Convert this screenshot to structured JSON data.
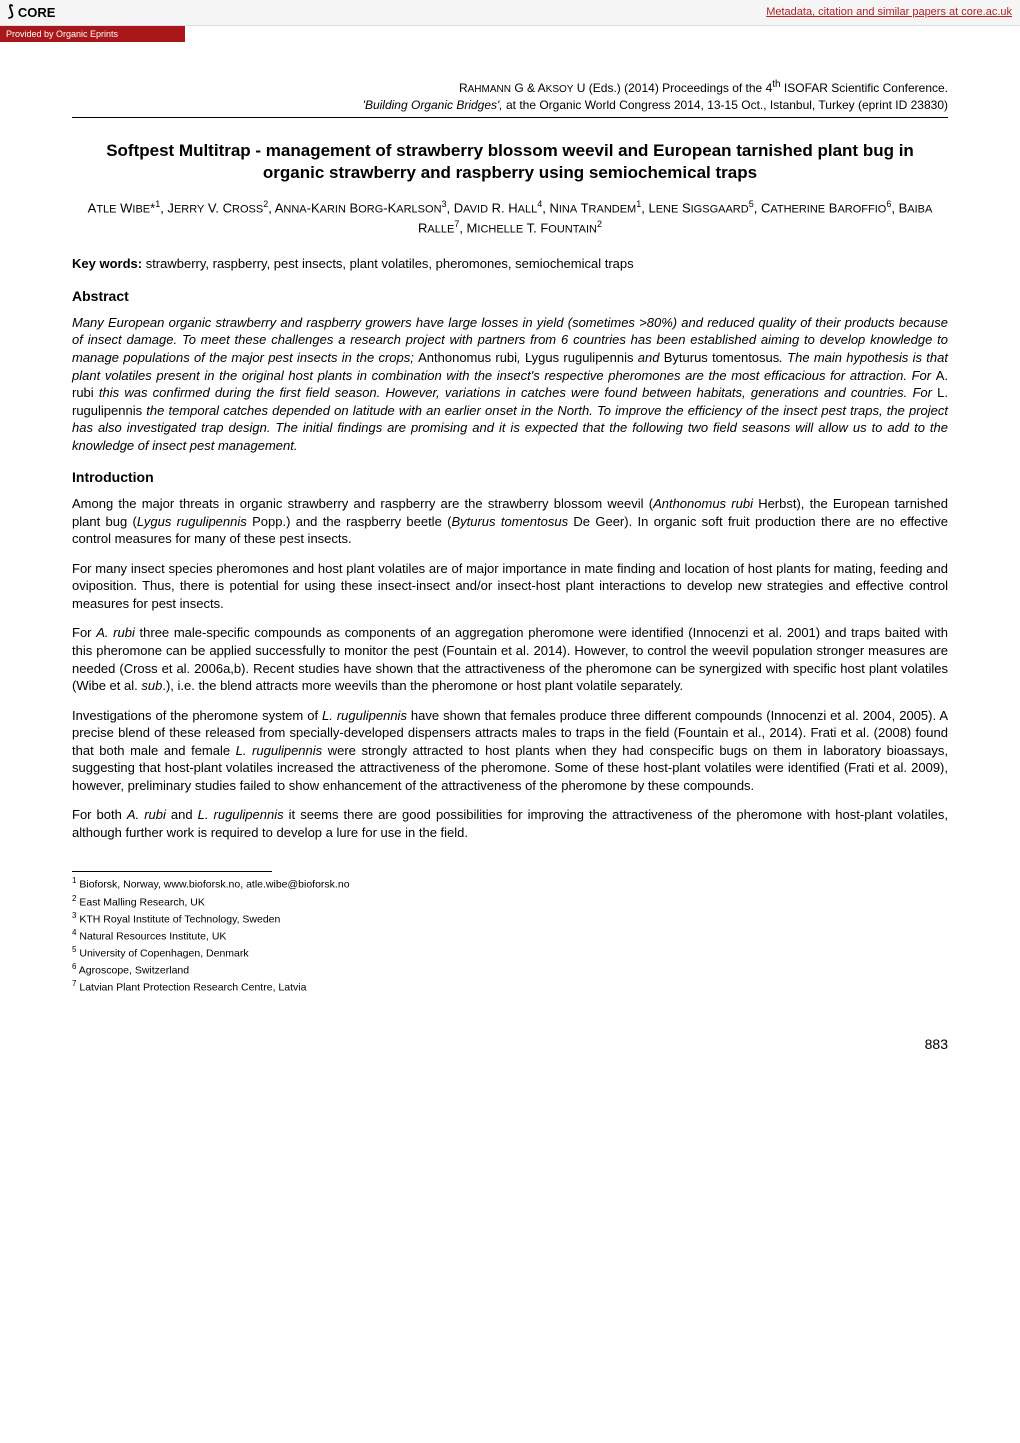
{
  "topbar": {
    "core_label": "CORE",
    "metadata_link": "Metadata, citation and similar papers at core.ac.uk",
    "provided_by": "Provided by Organic Eprints"
  },
  "header": {
    "line1_pre": "R",
    "line1_sc1": "AHMANN",
    "line1_mid1": " G & A",
    "line1_sc2": "KSOY",
    "line1_post": " U (Eds.) (2014) Proceedings of the 4",
    "line1_sup": "th",
    "line1_end": " ISOFAR Scientific Conference.",
    "line2_italic": "'Building Organic Bridges',",
    "line2_rest": " at the Organic World Congress 2014, 13-15 Oct., Istanbul, Turkey (eprint ID 23830)"
  },
  "title": "Softpest Multitrap - management of strawberry blossom weevil and European tarnished plant bug in organic strawberry and raspberry using semiochemical traps",
  "authors_html": "A<span style='font-variant:normal;font-size:11px'>TLE</span> W<span style='font-variant:normal;font-size:11px'>IBE</span>*<sup>1</sup>, J<span style='font-variant:normal;font-size:11px'>ERRY</span> V. C<span style='font-variant:normal;font-size:11px'>ROSS</span><sup>2</sup>, A<span style='font-variant:normal;font-size:11px'>NNA</span>-K<span style='font-variant:normal;font-size:11px'>ARIN</span> B<span style='font-variant:normal;font-size:11px'>ORG</span>-K<span style='font-variant:normal;font-size:11px'>ARLSON</span><sup>3</sup>, D<span style='font-variant:normal;font-size:11px'>AVID</span> R. H<span style='font-variant:normal;font-size:11px'>ALL</span><sup>4</sup>, N<span style='font-variant:normal;font-size:11px'>INA</span> T<span style='font-variant:normal;font-size:11px'>RANDEM</span><sup>1</sup>, L<span style='font-variant:normal;font-size:11px'>ENE</span> S<span style='font-variant:normal;font-size:11px'>IGSGAARD</span><sup>5</sup>, C<span style='font-variant:normal;font-size:11px'>ATHERINE</span> B<span style='font-variant:normal;font-size:11px'>AROFFIO</span><sup>6</sup>, B<span style='font-variant:normal;font-size:11px'>AIBA</span> R<span style='font-variant:normal;font-size:11px'>ALLE</span><sup>7</sup>, M<span style='font-variant:normal;font-size:11px'>ICHELLE</span> T. F<span style='font-variant:normal;font-size:11px'>OUNTAIN</span><sup>2</sup>",
  "keywords": {
    "label": "Key words:",
    "text": " strawberry, raspberry, pest insects, plant volatiles, pheromones, semiochemical traps"
  },
  "sections": {
    "abstract_h": "Abstract",
    "abstract": "Many European organic strawberry and raspberry growers have large losses in yield (sometimes >80%) and reduced quality of their products because of insect damage. To meet these challenges a research project with partners from 6 countries has been established aiming to develop knowledge to manage populations of the major pest insects in the crops; <span class='roman'>Anthonomus rubi</span>, <span class='roman'>Lygus rugulipennis</span> and <span class='roman'>Byturus tomentosus</span>. The main hypothesis is that plant volatiles present in the original host plants in combination with the insect's respective pheromones are the most efficacious for attraction. For <span class='roman'>A. rubi</span> this was confirmed during the first field season. However, variations in catches were found between habitats, generations and countries. For <span class='roman'>L. rugulipennis</span> the temporal catches depended on latitude with an earlier onset in the North. To improve the efficiency of the insect pest traps, the project has also investigated trap design. The initial findings are promising and it is expected that the following two field seasons will allow us to add to the knowledge of insect pest management.",
    "intro_h": "Introduction",
    "p1": "Among the major threats in organic strawberry and raspberry are the strawberry blossom weevil (<i>Anthonomus rubi</i> Herbst), the European tarnished plant bug (<i>Lygus rugulipennis</i> Popp.) and the raspberry beetle (<i>Byturus tomentosus</i> De Geer). In organic soft fruit production there are no effective control measures for many of these pest insects.",
    "p2": "For many insect species pheromones and host plant volatiles are of major importance in mate finding and location of host plants for mating, feeding and oviposition. Thus, there is potential for using these insect-insect and/or insect-host plant interactions to develop new strategies and effective control measures for pest insects.",
    "p3": "For <i>A. rubi</i> three male-specific compounds as components of an aggregation pheromone were identified (Innocenzi et al. 2001) and traps baited with this pheromone can be applied successfully to monitor the pest (Fountain et al. 2014). However, to control the weevil population stronger measures are needed (Cross et al. 2006a,b). Recent studies have shown that the attractiveness of the pheromone can be synergized with specific host plant volatiles (Wibe et al. <i>sub</i>.), i.e. the blend attracts more weevils than the pheromone or host plant volatile separately.",
    "p4": "Investigations of the pheromone system of <i>L. rugulipennis</i> have shown that females produce three different compounds (Innocenzi et al. 2004, 2005). A precise blend of these released from specially-developed dispensers attracts males to traps in the field (Fountain et al., 2014). Frati et al. (2008) found that both male and female <i>L. rugulipennis</i> were strongly attracted to host plants when they had conspecific bugs on them in laboratory bioassays, suggesting that host-plant volatiles increased the attractiveness of the pheromone. Some of these host-plant volatiles were identified (Frati et al. 2009), however, preliminary studies failed to show enhancement of the attractiveness of the pheromone by these compounds.",
    "p5": "For both <i>A. rubi</i> and <i>L. rugulipennis</i> it seems there are good possibilities for improving the attractiveness of the pheromone with host-plant volatiles, although further work is required to develop a lure for use in the field."
  },
  "footnotes": [
    "Bioforsk, Norway, www.bioforsk.no, atle.wibe@bioforsk.no",
    "East Malling Research, UK",
    "KTH Royal Institute of Technology, Sweden",
    "Natural Resources Institute, UK",
    "University of Copenhagen, Denmark",
    "Agroscope, Switzerland",
    "Latvian Plant Protection Research Centre, Latvia"
  ],
  "pagenum": "883"
}
